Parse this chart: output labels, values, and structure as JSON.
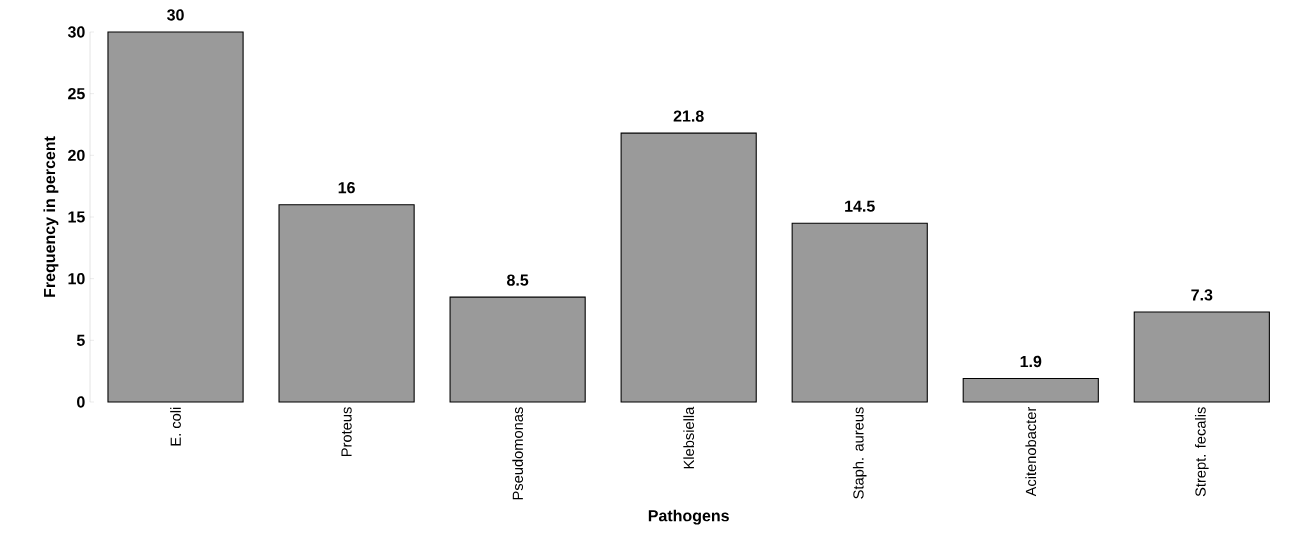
{
  "chart_data": {
    "type": "bar",
    "xlabel": "Pathogens",
    "ylabel": "Frequency in percent",
    "categories": [
      "E. coli",
      "Proteus",
      "Pseudomonas",
      "Klebsiella",
      "Staph. aureus",
      "Acitenobacter",
      "Strept. fecalis"
    ],
    "values": [
      30,
      16,
      8.5,
      21.8,
      14.5,
      1.9,
      7.3
    ],
    "color": "#9a9a9a",
    "ylim": [
      0,
      30
    ],
    "yticks": [
      0,
      5,
      10,
      15,
      20,
      25,
      30
    ],
    "data_labels": true
  }
}
